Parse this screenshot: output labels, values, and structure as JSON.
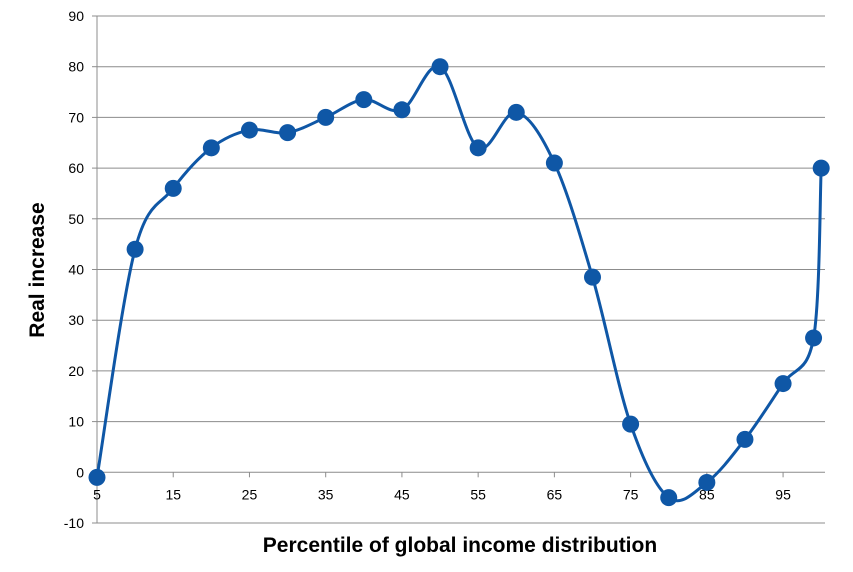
{
  "chart_data": {
    "type": "line",
    "title": "",
    "xlabel": "Percentile of global income distribution",
    "ylabel": "Real increase",
    "x_ticks": [
      "5",
      "15",
      "25",
      "35",
      "45",
      "55",
      "65",
      "75",
      "85",
      "95"
    ],
    "y_ticks": [
      "90",
      "80",
      "70",
      "60",
      "50",
      "40",
      "30",
      "20",
      "10",
      "0",
      "-10"
    ],
    "xlim": [
      5,
      100.5
    ],
    "ylim": [
      -10,
      90
    ],
    "grid": "horizontal",
    "smooth": true,
    "series": [
      {
        "color": "#0F57A6",
        "points": [
          {
            "x": 5,
            "y": -1
          },
          {
            "x": 10,
            "y": 44
          },
          {
            "x": 15,
            "y": 56
          },
          {
            "x": 20,
            "y": 64
          },
          {
            "x": 25,
            "y": 67.5
          },
          {
            "x": 30,
            "y": 67
          },
          {
            "x": 35,
            "y": 70
          },
          {
            "x": 40,
            "y": 73.5
          },
          {
            "x": 45,
            "y": 71.5
          },
          {
            "x": 50,
            "y": 80
          },
          {
            "x": 55,
            "y": 64
          },
          {
            "x": 60,
            "y": 71
          },
          {
            "x": 65,
            "y": 61
          },
          {
            "x": 70,
            "y": 38.5
          },
          {
            "x": 75,
            "y": 9.5
          },
          {
            "x": 80,
            "y": -5
          },
          {
            "x": 85,
            "y": -2
          },
          {
            "x": 90,
            "y": 6.5
          },
          {
            "x": 95,
            "y": 17.5
          },
          {
            "x": 99,
            "y": 26.5
          },
          {
            "x": 100,
            "y": 60
          }
        ]
      }
    ]
  }
}
